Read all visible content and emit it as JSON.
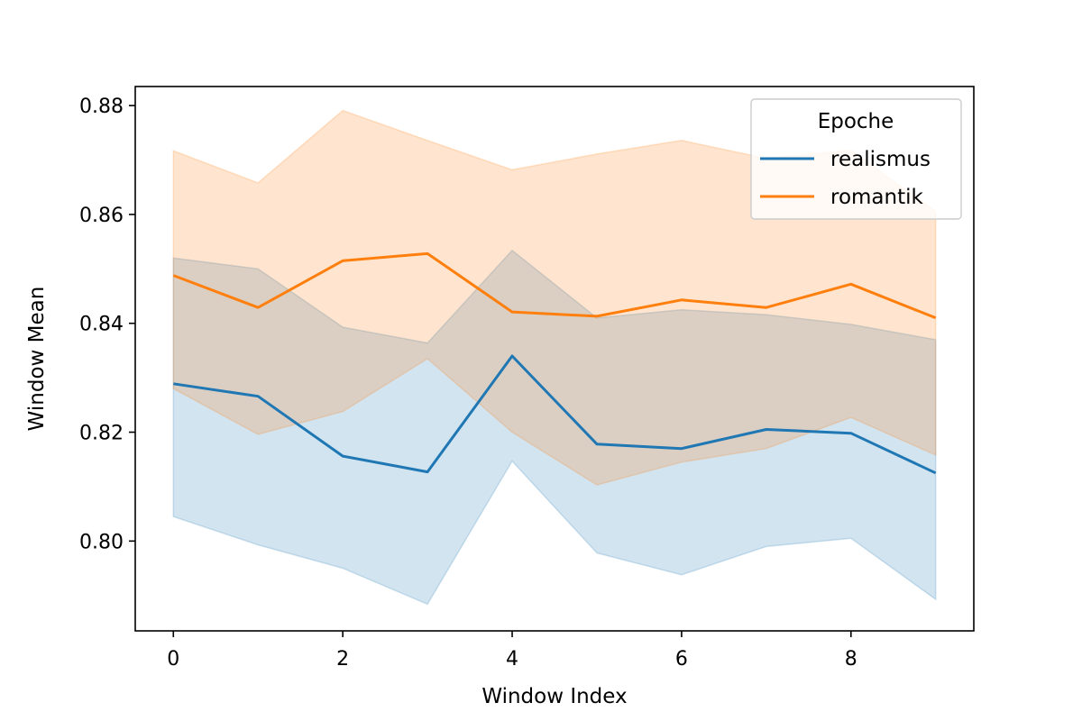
{
  "chart_data": {
    "type": "line",
    "xlabel": "Window Index",
    "ylabel": "Window Mean",
    "xlim": [
      -0.45,
      9.45
    ],
    "ylim": [
      0.7835,
      0.8835
    ],
    "xticks": [
      0,
      2,
      4,
      6,
      8
    ],
    "xtick_labels": [
      "0",
      "2",
      "4",
      "6",
      "8"
    ],
    "yticks": [
      0.8,
      0.82,
      0.84,
      0.86,
      0.88
    ],
    "ytick_labels": [
      "0.80",
      "0.82",
      "0.84",
      "0.86",
      "0.88"
    ],
    "grid": false,
    "legend": {
      "title": "Epoche",
      "placement": "top-right"
    },
    "x": [
      0,
      1,
      2,
      3,
      4,
      5,
      6,
      7,
      8,
      9
    ],
    "series": [
      {
        "name": "realismus",
        "color": "#1f77b4",
        "values": [
          0.8289,
          0.8266,
          0.8156,
          0.8127,
          0.834,
          0.8178,
          0.817,
          0.8205,
          0.8198,
          0.8125
        ],
        "ci_low": [
          0.8045,
          0.7993,
          0.795,
          0.7884,
          0.8147,
          0.7978,
          0.7938,
          0.799,
          0.8005,
          0.7893
        ],
        "ci_high": [
          0.852,
          0.85,
          0.8393,
          0.8364,
          0.8534,
          0.841,
          0.8425,
          0.8416,
          0.8398,
          0.837
        ]
      },
      {
        "name": "romantik",
        "color": "#ff7f0e",
        "values": [
          0.8488,
          0.8429,
          0.8515,
          0.8528,
          0.8421,
          0.8413,
          0.8443,
          0.8429,
          0.8472,
          0.841
        ],
        "ci_low": [
          0.828,
          0.8196,
          0.8238,
          0.8335,
          0.82,
          0.8103,
          0.8145,
          0.817,
          0.8227,
          0.8158
        ],
        "ci_high": [
          0.8717,
          0.8658,
          0.8791,
          0.8736,
          0.8682,
          0.8711,
          0.8736,
          0.8703,
          0.8718,
          0.8605
        ]
      }
    ]
  }
}
